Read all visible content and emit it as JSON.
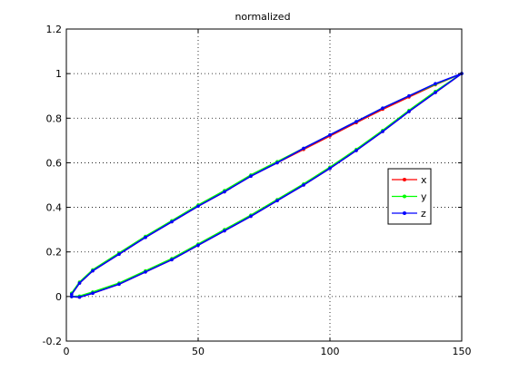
{
  "chart_data": {
    "type": "line",
    "title": "normalized",
    "xlabel": "",
    "ylabel": "",
    "xlim": [
      0,
      150
    ],
    "ylim": [
      -0.2,
      1.2
    ],
    "xticks": [
      "0",
      "50",
      "100",
      "150"
    ],
    "yticks": [
      "-0.2",
      "0",
      "0.2",
      "0.4",
      "0.6",
      "0.8",
      "1",
      "1.2"
    ],
    "grid": true,
    "legend_position": "right",
    "series": [
      {
        "name": "x",
        "color": "#ff0000",
        "x": [
          2,
          5,
          10,
          20,
          30,
          40,
          50,
          60,
          70,
          80,
          90,
          100,
          110,
          120,
          130,
          140,
          150,
          140,
          130,
          120,
          110,
          100,
          90,
          80,
          70,
          60,
          50,
          40,
          30,
          20,
          10,
          5,
          2
        ],
        "y": [
          0.0,
          -0.003,
          0.015,
          0.055,
          0.11,
          0.165,
          0.23,
          0.295,
          0.36,
          0.43,
          0.5,
          0.575,
          0.655,
          0.74,
          0.83,
          0.915,
          1.0,
          0.95,
          0.895,
          0.84,
          0.78,
          0.72,
          0.66,
          0.6,
          0.54,
          0.47,
          0.405,
          0.335,
          0.265,
          0.19,
          0.115,
          0.06,
          0.01
        ]
      },
      {
        "name": "y",
        "color": "#00ff00",
        "x": [
          2,
          5,
          10,
          20,
          30,
          40,
          50,
          60,
          70,
          80,
          90,
          100,
          110,
          120,
          130,
          140,
          150,
          140,
          130,
          120,
          110,
          100,
          90,
          80,
          70,
          60,
          50,
          40,
          30,
          20,
          10,
          5,
          2
        ],
        "y": [
          0.0,
          0.002,
          0.02,
          0.06,
          0.115,
          0.17,
          0.235,
          0.3,
          0.365,
          0.435,
          0.505,
          0.58,
          0.66,
          0.745,
          0.835,
          0.92,
          1.0,
          0.952,
          0.9,
          0.845,
          0.785,
          0.725,
          0.665,
          0.605,
          0.545,
          0.475,
          0.41,
          0.34,
          0.27,
          0.195,
          0.12,
          0.065,
          0.015
        ]
      },
      {
        "name": "z",
        "color": "#0000ff",
        "x": [
          2,
          5,
          10,
          20,
          30,
          40,
          50,
          60,
          70,
          80,
          90,
          100,
          110,
          120,
          130,
          140,
          150,
          140,
          130,
          120,
          110,
          100,
          90,
          80,
          70,
          60,
          50,
          40,
          30,
          20,
          10,
          5,
          2
        ],
        "y": [
          0.0,
          -0.003,
          0.015,
          0.055,
          0.11,
          0.165,
          0.23,
          0.295,
          0.36,
          0.43,
          0.5,
          0.575,
          0.655,
          0.74,
          0.83,
          0.915,
          1.0,
          0.955,
          0.9,
          0.845,
          0.785,
          0.725,
          0.665,
          0.6,
          0.54,
          0.47,
          0.405,
          0.335,
          0.265,
          0.19,
          0.115,
          0.06,
          0.01
        ]
      }
    ]
  }
}
